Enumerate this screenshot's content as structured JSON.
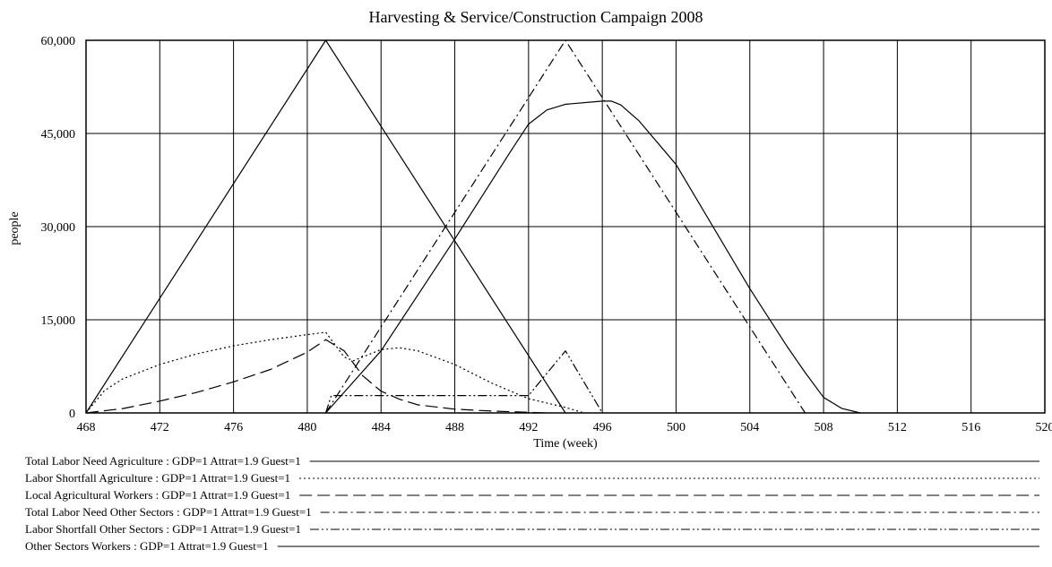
{
  "chart_data": {
    "type": "line",
    "title": "Harvesting & Service/Construction Campaign 2008",
    "xlabel": "Time (week)",
    "ylabel": "people",
    "xlim": [
      468,
      520
    ],
    "ylim": [
      0,
      60000
    ],
    "x_ticks": [
      "468",
      "472",
      "476",
      "480",
      "484",
      "488",
      "492",
      "496",
      "500",
      "504",
      "508",
      "512",
      "516",
      "520"
    ],
    "y_ticks": [
      {
        "value": 0,
        "label": "0"
      },
      {
        "value": 15000,
        "label": "15,000"
      },
      {
        "value": 30000,
        "label": "30,000"
      },
      {
        "value": 45000,
        "label": "45,000"
      },
      {
        "value": 60000,
        "label": "60,000"
      }
    ],
    "grid": true,
    "legend_position": "bottom",
    "series": [
      {
        "name": "Total Labor Need Agriculture : GDP=1 Attrat=1.9 Guest=1",
        "style": "solid",
        "points": [
          [
            468,
            0
          ],
          [
            481,
            60000
          ],
          [
            494,
            0
          ]
        ]
      },
      {
        "name": "Labor Shortfall Agriculture : GDP=1 Attrat=1.9 Guest=1",
        "style": "dotted",
        "points": [
          [
            468,
            0
          ],
          [
            469,
            3600
          ],
          [
            470,
            5500
          ],
          [
            472,
            7800
          ],
          [
            474,
            9500
          ],
          [
            476,
            10800
          ],
          [
            478,
            11800
          ],
          [
            480,
            12600
          ],
          [
            481,
            13000
          ],
          [
            482,
            9000
          ],
          [
            482.5,
            8400
          ],
          [
            483,
            9000
          ],
          [
            484,
            10200
          ],
          [
            485,
            10500
          ],
          [
            486,
            10000
          ],
          [
            488,
            7800
          ],
          [
            490,
            4800
          ],
          [
            492,
            2300
          ],
          [
            494,
            900
          ],
          [
            495,
            0
          ]
        ]
      },
      {
        "name": "Local Agricultural Workers : GDP=1 Attrat=1.9 Guest=1",
        "style": "dashed",
        "points": [
          [
            468,
            0
          ],
          [
            470,
            700
          ],
          [
            472,
            1900
          ],
          [
            474,
            3300
          ],
          [
            476,
            5000
          ],
          [
            478,
            7000
          ],
          [
            480,
            9800
          ],
          [
            481,
            11800
          ],
          [
            482,
            10000
          ],
          [
            483,
            6000
          ],
          [
            484,
            3500
          ],
          [
            485,
            2200
          ],
          [
            486,
            1300
          ],
          [
            488,
            600
          ],
          [
            490,
            300
          ],
          [
            492,
            100
          ],
          [
            493,
            0
          ]
        ]
      },
      {
        "name": "Total Labor Need Other Sectors : GDP=1 Attrat=1.9 Guest=1",
        "style": "dashdot",
        "points": [
          [
            481,
            0
          ],
          [
            494,
            60000
          ],
          [
            507,
            0
          ]
        ]
      },
      {
        "name": "Labor Shortfall Other Sectors : GDP=1 Attrat=1.9 Guest=1",
        "style": "dashdotdot",
        "points": [
          [
            481,
            0
          ],
          [
            481.3,
            2800
          ],
          [
            482,
            2800
          ],
          [
            485,
            2800
          ],
          [
            488,
            2800
          ],
          [
            492,
            2800
          ],
          [
            494,
            10000
          ],
          [
            496,
            0
          ]
        ]
      },
      {
        "name": "Other Sectors Workers : GDP=1 Attrat=1.9 Guest=1",
        "style": "solid",
        "points": [
          [
            481,
            0
          ],
          [
            484,
            10000
          ],
          [
            488,
            28000
          ],
          [
            491,
            42000
          ],
          [
            492,
            46500
          ],
          [
            493,
            48800
          ],
          [
            494,
            49700
          ],
          [
            496,
            50200
          ],
          [
            496.5,
            50200
          ],
          [
            497,
            49600
          ],
          [
            498,
            47000
          ],
          [
            500,
            40000
          ],
          [
            504,
            20000
          ],
          [
            506,
            10800
          ],
          [
            507,
            6500
          ],
          [
            508,
            2500
          ],
          [
            509,
            700
          ],
          [
            510,
            0
          ]
        ]
      }
    ]
  }
}
